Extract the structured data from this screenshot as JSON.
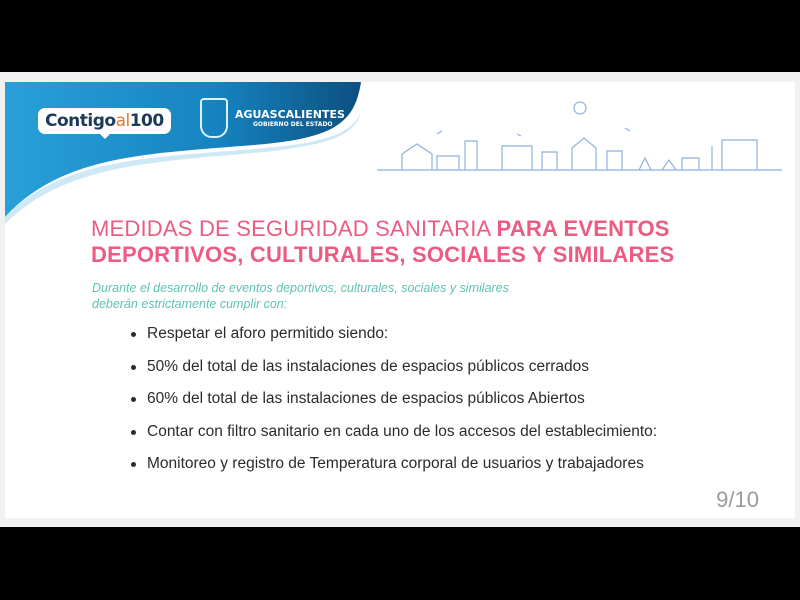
{
  "header": {
    "logo_contigo": "Contigo",
    "logo_al": "al",
    "logo_100": "100",
    "gov_name": "AGUASCALIENTES",
    "gov_sub": "GOBIERNO DEL ESTADO"
  },
  "slide": {
    "title_light": "MEDIDAS DE SEGURIDAD SANITARIA ",
    "title_bold_1": "PARA EVENTOS",
    "title_bold_2": "DEPORTIVOS, CULTURALES, SOCIALES Y SIMILARES",
    "subtitle_1": "Durante el desarrollo de eventos deportivos, culturales, sociales y similares",
    "subtitle_2": "deberán estrictamente cumplir con:",
    "bullets": [
      "Respetar el aforo permitido siendo:",
      "50% del total de las instalaciones de espacios públicos cerrados",
      "60% del total de las instalaciones de espacios públicos Abiertos",
      "Contar con filtro sanitario en cada uno de los accesos del establecimiento:",
      "Monitoreo y registro de Temperatura corporal de usuarios y trabajadores"
    ],
    "page_number": "9/10"
  },
  "colors": {
    "banner": "#1a8fc8",
    "title": "#ec5b82",
    "subtitle": "#5ec3b0"
  }
}
